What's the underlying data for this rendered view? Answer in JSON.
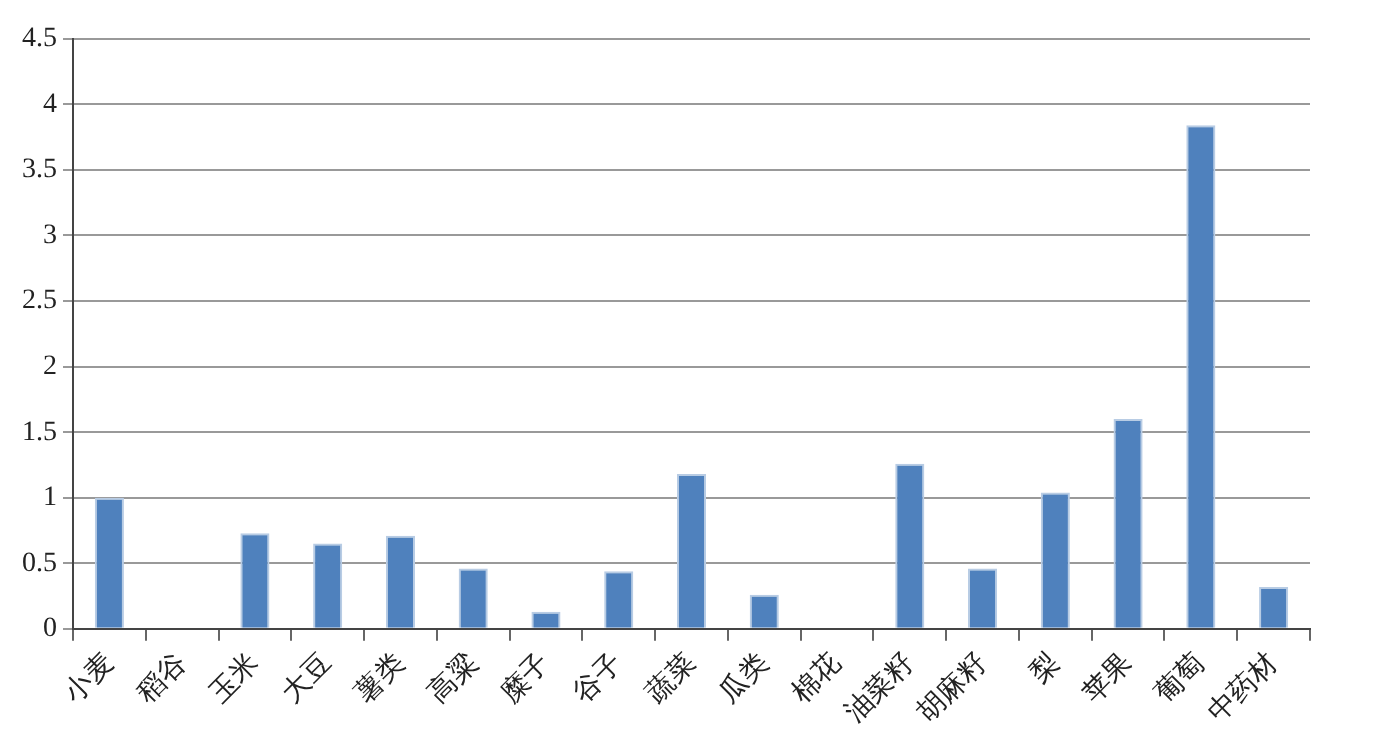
{
  "chart_data": {
    "type": "bar",
    "categories": [
      "小麦",
      "稻谷",
      "玉米",
      "大豆",
      "薯类",
      "高粱",
      "糜子",
      "谷子",
      "蔬菜",
      "瓜类",
      "棉花",
      "油菜籽",
      "胡麻籽",
      "梨",
      "苹果",
      "葡萄",
      "中药材"
    ],
    "values": [
      1.0,
      0,
      0.73,
      0.65,
      0.71,
      0.46,
      0.13,
      0.44,
      1.18,
      0.26,
      0,
      1.26,
      0.46,
      1.04,
      1.6,
      3.84,
      0.32
    ],
    "color": "#4f81bd",
    "ylim": [
      0,
      4.5
    ],
    "yticks": [
      0,
      0.5,
      1,
      1.5,
      2,
      2.5,
      3,
      3.5,
      4,
      4.5
    ],
    "grid": "y",
    "legend": false
  }
}
